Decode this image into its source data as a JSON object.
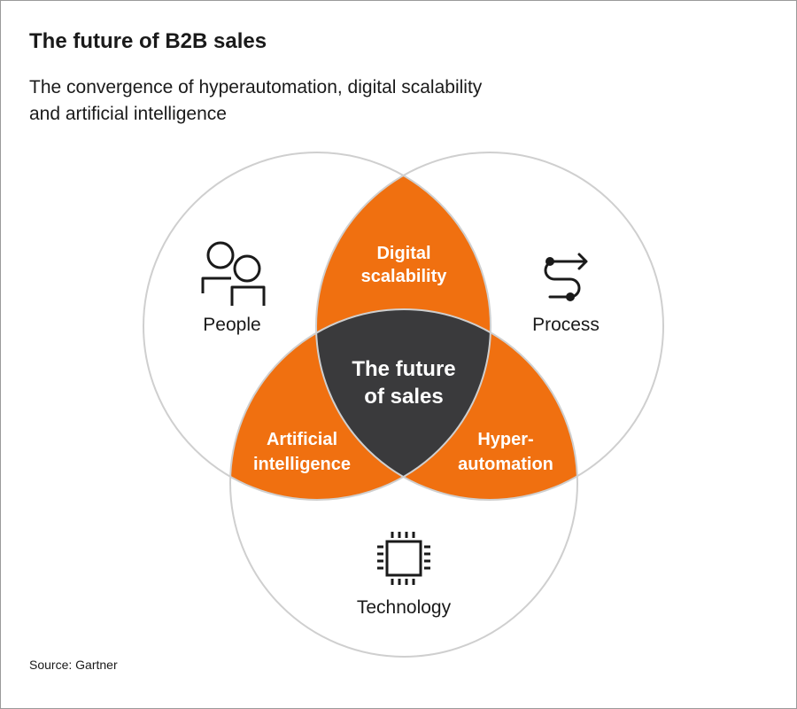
{
  "header": {
    "title": "The future of B2B sales",
    "subtitle_line1": "The convergence of hyperautomation, digital scalability",
    "subtitle_line2": "and artificial intelligence"
  },
  "diagram": {
    "circles": {
      "people": {
        "label": "People",
        "icon": "people-icon"
      },
      "process": {
        "label": "Process",
        "icon": "process-arrow-icon"
      },
      "technology": {
        "label": "Technology",
        "icon": "chip-icon"
      }
    },
    "overlaps": {
      "people_process": {
        "line1": "Digital",
        "line2": "scalability"
      },
      "people_technology": {
        "line1": "Artificial",
        "line2": "intelligence"
      },
      "process_technology": {
        "line1": "Hyper-",
        "line2": "automation"
      }
    },
    "center": {
      "line1": "The future",
      "line2": "of sales"
    }
  },
  "colors": {
    "overlap": "#f07010",
    "center": "#3a3a3c",
    "circle_stroke": "#cfcfcf",
    "overlap_text": "#ffffff",
    "label_text": "#1a1a1a"
  },
  "footer": {
    "source": "Source: Gartner"
  }
}
